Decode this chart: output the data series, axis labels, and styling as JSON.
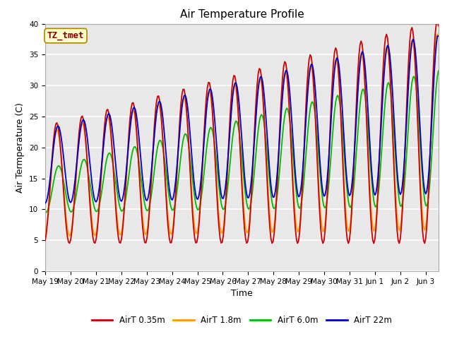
{
  "title": "Air Temperature Profile",
  "xlabel": "Time",
  "ylabel": "Air Termperature (C)",
  "ylim": [
    0,
    40
  ],
  "tick_labels": [
    "May 19",
    "May 20",
    "May 21",
    "May 22",
    "May 23",
    "May 24",
    "May 25",
    "May 26",
    "May 27",
    "May 28",
    "May 29",
    "May 30",
    "May 31",
    "Jun 1",
    "Jun 2",
    "Jun 3"
  ],
  "annotation_text": "TZ_tmet",
  "annotation_bg": "#ffffcc",
  "annotation_border": "#aa8800",
  "annotation_text_color": "#880000",
  "series_colors": [
    "#cc0000",
    "#ff9900",
    "#00bb00",
    "#0000cc"
  ],
  "series_labels": [
    "AirT 0.35m",
    "AirT 1.8m",
    "AirT 6.0m",
    "AirT 22m"
  ],
  "bg_color": "#e8e8e8",
  "grid_color": "#ffffff",
  "title_fontsize": 11,
  "axis_fontsize": 9,
  "tick_fontsize": 7.5
}
